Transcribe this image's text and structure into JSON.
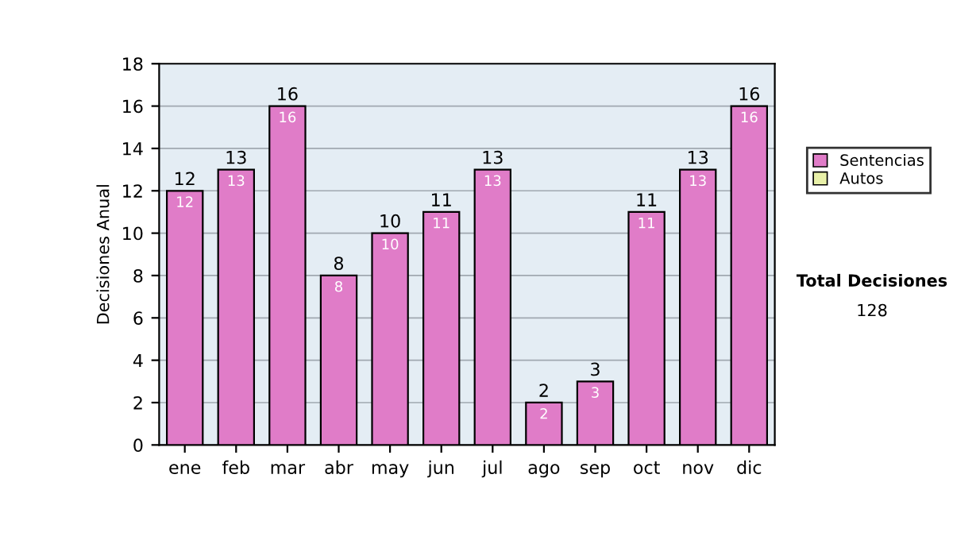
{
  "chart_data": {
    "type": "bar",
    "ylabel": "Decisiones Anual",
    "categories": [
      "ene",
      "feb",
      "mar",
      "abr",
      "may",
      "jun",
      "jul",
      "ago",
      "sep",
      "oct",
      "nov",
      "dic"
    ],
    "series": [
      {
        "name": "Sentencias",
        "color": "#e07cc8",
        "values": [
          12,
          13,
          16,
          8,
          10,
          11,
          13,
          2,
          3,
          11,
          13,
          16
        ]
      },
      {
        "name": "Autos",
        "color": "#e8f0a8",
        "values": [
          null,
          null,
          null,
          null,
          null,
          null,
          null,
          null,
          null,
          null,
          null,
          null
        ]
      }
    ],
    "stacked": true,
    "data_labels": true,
    "totals": [
      "12",
      "13",
      "16",
      "8",
      "10",
      "11",
      "13",
      "2",
      "3",
      "11",
      "13",
      "16"
    ],
    "ylim": [
      0,
      18
    ],
    "yticks": [
      0,
      2,
      4,
      6,
      8,
      10,
      12,
      14,
      16,
      18
    ],
    "grid": "y",
    "legend": "right",
    "annotations": [
      "Total Decisiones",
      "128"
    ]
  }
}
